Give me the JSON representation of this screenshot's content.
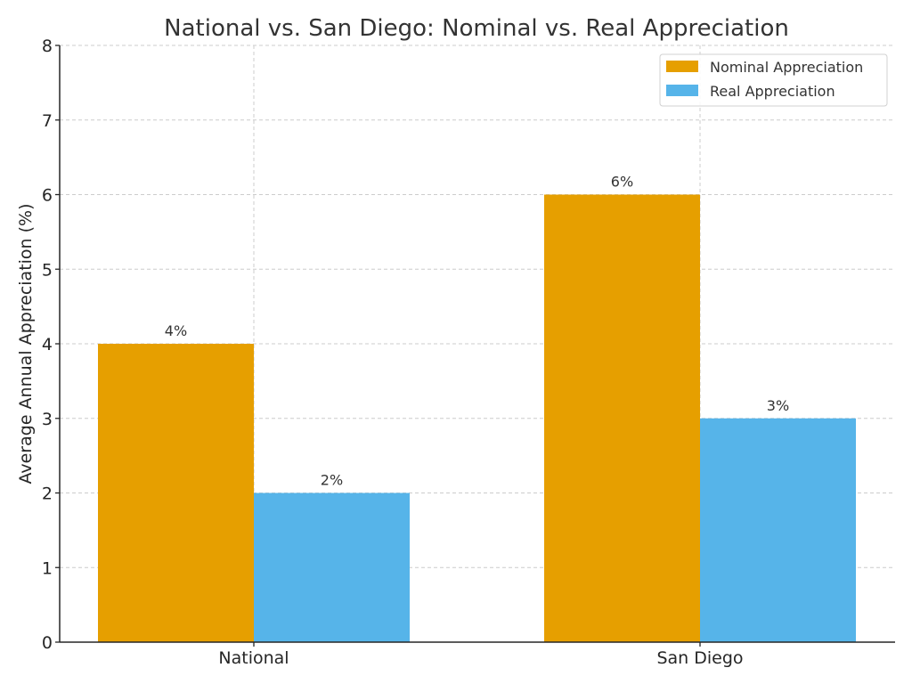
{
  "chart_data": {
    "type": "bar",
    "title": "National vs. San Diego: Nominal vs. Real Appreciation",
    "xlabel": "",
    "ylabel": "Average Annual Appreciation (%)",
    "categories": [
      "National",
      "San Diego"
    ],
    "series": [
      {
        "name": "Nominal Appreciation",
        "values": [
          4,
          6
        ],
        "color": "#E69F00",
        "labels": [
          "4%",
          "6%"
        ]
      },
      {
        "name": "Real Appreciation",
        "values": [
          2,
          3
        ],
        "color": "#56B4E9",
        "labels": [
          "2%",
          "3%"
        ]
      }
    ],
    "ylim": [
      0,
      8
    ],
    "yticks": [
      "0",
      "1",
      "2",
      "3",
      "4",
      "5",
      "6",
      "7",
      "8"
    ],
    "grid": true,
    "legend_position": "top-right"
  }
}
